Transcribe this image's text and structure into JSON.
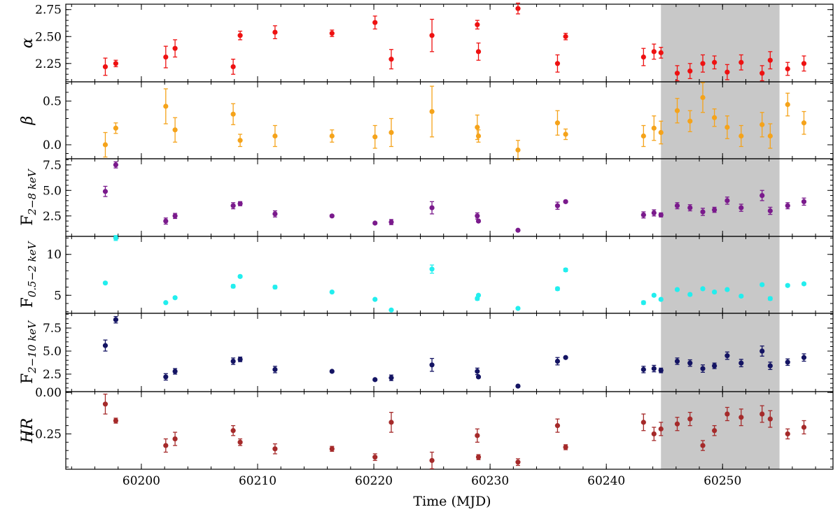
{
  "chart_data": {
    "type": "scatter",
    "title": "",
    "xlabel": "Time (MJD)",
    "xlim": [
      60193.5,
      60259.5
    ],
    "xticks": [
      60200,
      60210,
      60220,
      60230,
      60240,
      60250
    ],
    "x_minor_step": 2,
    "shaded_region": {
      "x0": 60244.7,
      "x1": 60254.9,
      "color": "#c8c8c8"
    },
    "x": [
      60196.9,
      60197.8,
      60202.1,
      60202.9,
      60207.9,
      60208.5,
      60211.5,
      60216.4,
      60220.1,
      60221.5,
      60225.0,
      60228.9,
      60229.0,
      60232.4,
      60235.8,
      60236.5,
      60243.2,
      60244.1,
      60244.7,
      60246.1,
      60247.2,
      60248.3,
      60249.3,
      60250.4,
      60251.6,
      60253.4,
      60254.1,
      60255.6,
      60257.0
    ],
    "panels": [
      {
        "id": "alpha",
        "ylabel": "α",
        "color": "#ee1111",
        "ylim": [
          2.08,
          2.8
        ],
        "yticks": [
          2.25,
          2.5,
          2.75
        ],
        "ytick_labels": [
          "2.25",
          "2.50",
          "2.75"
        ],
        "minor_step": 0.05,
        "y": [
          2.22,
          2.25,
          2.31,
          2.39,
          2.22,
          2.51,
          2.54,
          2.53,
          2.63,
          2.29,
          2.51,
          2.61,
          2.36,
          2.76,
          2.25,
          2.5,
          2.31,
          2.36,
          2.35,
          2.16,
          2.18,
          2.25,
          2.26,
          2.17,
          2.26,
          2.16,
          2.28,
          2.2,
          2.25
        ],
        "err": [
          0.08,
          0.03,
          0.1,
          0.08,
          0.07,
          0.04,
          0.06,
          0.03,
          0.06,
          0.09,
          0.15,
          0.04,
          0.08,
          0.05,
          0.08,
          0.03,
          0.08,
          0.07,
          0.05,
          0.07,
          0.07,
          0.08,
          0.06,
          0.07,
          0.07,
          0.07,
          0.08,
          0.06,
          0.07
        ]
      },
      {
        "id": "beta",
        "ylabel": "β",
        "color": "#f5a31a",
        "ylim": [
          -0.16,
          0.72
        ],
        "yticks": [
          0.0,
          0.5
        ],
        "ytick_labels": [
          "0.0",
          "0.5"
        ],
        "minor_step": 0.1,
        "y": [
          0.0,
          0.19,
          0.44,
          0.17,
          0.35,
          0.05,
          0.1,
          0.1,
          0.09,
          0.14,
          0.38,
          0.2,
          0.1,
          -0.06,
          0.25,
          0.12,
          0.1,
          0.19,
          0.14,
          0.39,
          0.27,
          0.54,
          0.31,
          0.2,
          0.1,
          0.23,
          0.1,
          0.46,
          0.25
        ],
        "err": [
          0.14,
          0.06,
          0.2,
          0.14,
          0.12,
          0.07,
          0.12,
          0.07,
          0.13,
          0.16,
          0.29,
          0.14,
          0.07,
          0.11,
          0.14,
          0.06,
          0.12,
          0.14,
          0.13,
          0.14,
          0.12,
          0.17,
          0.1,
          0.13,
          0.12,
          0.14,
          0.14,
          0.13,
          0.13
        ]
      },
      {
        "id": "f2_8",
        "ylabel": "F",
        "ylabel_sub": "2−8 keV",
        "color": "#7a1a8c",
        "ylim": [
          0.5,
          8.1
        ],
        "yticks": [
          2.5,
          5.0,
          7.5
        ],
        "ytick_labels": [
          "2.5",
          "5.0",
          "7.5"
        ],
        "minor_step": 0.5,
        "y": [
          4.9,
          7.5,
          2.0,
          2.5,
          3.5,
          3.7,
          2.7,
          2.5,
          1.8,
          1.9,
          3.3,
          2.5,
          2.0,
          1.1,
          3.5,
          3.9,
          2.6,
          2.8,
          2.6,
          3.5,
          3.3,
          2.9,
          3.1,
          4.0,
          3.3,
          4.5,
          3.0,
          3.5,
          3.9
        ],
        "err": [
          0.5,
          0.3,
          0.3,
          0.25,
          0.3,
          0.2,
          0.3,
          0.1,
          0.1,
          0.25,
          0.6,
          0.3,
          0.1,
          0.05,
          0.35,
          0.1,
          0.3,
          0.3,
          0.2,
          0.3,
          0.3,
          0.35,
          0.25,
          0.35,
          0.35,
          0.5,
          0.35,
          0.3,
          0.35
        ]
      },
      {
        "id": "f05_2",
        "ylabel": "F",
        "ylabel_sub": "0.5−2 keV",
        "color": "#22eeee",
        "ylim": [
          2.8,
          12.2
        ],
        "yticks": [
          5,
          10
        ],
        "ytick_labels": [
          "5",
          "10"
        ],
        "minor_step": 1,
        "y": [
          6.5,
          12.0,
          4.1,
          4.7,
          6.1,
          7.3,
          6.0,
          5.4,
          4.5,
          3.2,
          8.2,
          4.6,
          5.0,
          3.4,
          5.8,
          8.1,
          4.1,
          5.0,
          4.5,
          5.7,
          5.1,
          5.8,
          5.4,
          5.7,
          4.9,
          6.3,
          4.6,
          6.2,
          6.4
        ],
        "err": [
          0.15,
          0.3,
          0.1,
          0.15,
          0.2,
          0.15,
          0.2,
          0.1,
          0.1,
          0.1,
          0.5,
          0.2,
          0.1,
          0.05,
          0.2,
          0.2,
          0.2,
          0.15,
          0.15,
          0.15,
          0.15,
          0.15,
          0.15,
          0.15,
          0.15,
          0.15,
          0.2,
          0.15,
          0.15
        ]
      },
      {
        "id": "f2_10",
        "ylabel": "F",
        "ylabel_sub": "2−10 keV",
        "color": "#141463",
        "ylim": [
          0.6,
          9.1
        ],
        "yticks": [
          2.5,
          5.0,
          7.5
        ],
        "ytick_labels": [
          "2.5",
          "5.0",
          "7.5"
        ],
        "minor_step": 0.5,
        "y": [
          5.6,
          8.4,
          2.2,
          2.8,
          3.9,
          4.1,
          3.0,
          2.8,
          1.9,
          2.1,
          3.5,
          2.8,
          2.2,
          1.2,
          3.9,
          4.3,
          3.0,
          3.1,
          2.9,
          3.9,
          3.7,
          3.1,
          3.4,
          4.5,
          3.7,
          5.0,
          3.4,
          3.8,
          4.3
        ],
        "err": [
          0.6,
          0.35,
          0.35,
          0.3,
          0.35,
          0.25,
          0.35,
          0.1,
          0.1,
          0.3,
          0.7,
          0.35,
          0.1,
          0.05,
          0.4,
          0.1,
          0.35,
          0.35,
          0.25,
          0.35,
          0.35,
          0.4,
          0.3,
          0.4,
          0.4,
          0.55,
          0.4,
          0.35,
          0.4
        ]
      },
      {
        "id": "hr",
        "ylabel": "HR",
        "color": "#a52a2a",
        "ylim": [
          -0.463,
          0.005
        ],
        "yticks": [
          0.0,
          -0.25
        ],
        "ytick_labels": [
          "0.00",
          "−0.25"
        ],
        "minor_step": 0.05,
        "y": [
          -0.07,
          -0.17,
          -0.32,
          -0.28,
          -0.23,
          -0.3,
          -0.34,
          -0.34,
          -0.39,
          -0.18,
          -0.41,
          -0.26,
          -0.39,
          -0.42,
          -0.2,
          -0.33,
          -0.18,
          -0.25,
          -0.22,
          -0.19,
          -0.16,
          -0.32,
          -0.23,
          -0.13,
          -0.15,
          -0.13,
          -0.16,
          -0.25,
          -0.21
        ],
        "err": [
          0.06,
          0.015,
          0.04,
          0.04,
          0.03,
          0.02,
          0.03,
          0.015,
          0.02,
          0.06,
          0.05,
          0.04,
          0.015,
          0.02,
          0.04,
          0.015,
          0.05,
          0.04,
          0.04,
          0.04,
          0.04,
          0.03,
          0.03,
          0.04,
          0.05,
          0.05,
          0.05,
          0.03,
          0.04
        ]
      }
    ]
  }
}
